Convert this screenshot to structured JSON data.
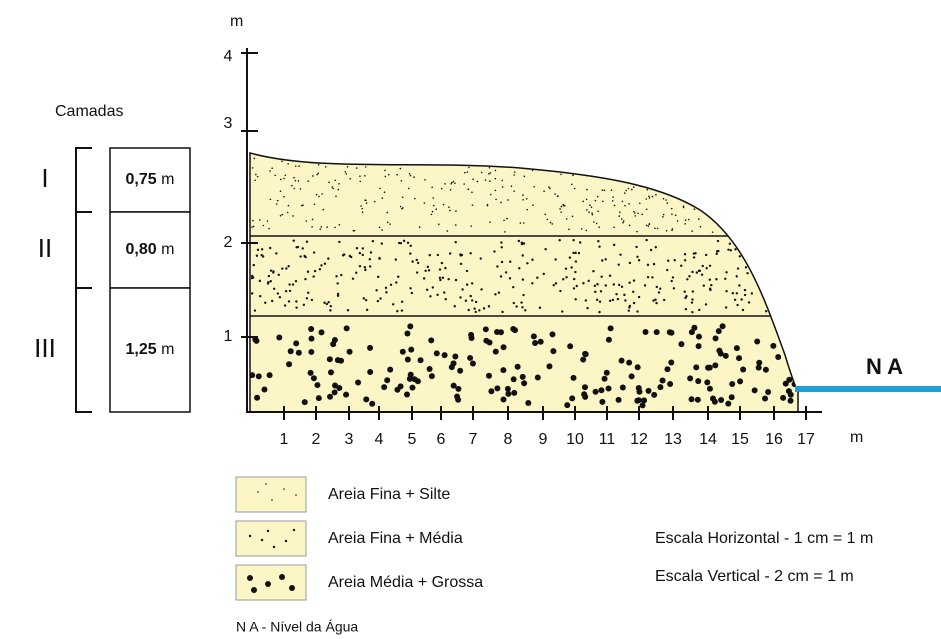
{
  "y_axis": {
    "unit": "m",
    "ticks": [
      "1",
      "2",
      "3",
      "4"
    ]
  },
  "x_axis": {
    "unit": "m",
    "ticks": [
      "1",
      "2",
      "3",
      "4",
      "5",
      "6",
      "7",
      "8",
      "9",
      "10",
      "11",
      "12",
      "13",
      "14",
      "15",
      "16",
      "17"
    ]
  },
  "camadas": {
    "title": "Camadas",
    "layers": [
      {
        "numeral": "I",
        "thickness": "0,75",
        "unit": "m"
      },
      {
        "numeral": "II",
        "thickness": "0,80",
        "unit": "m"
      },
      {
        "numeral": "III",
        "thickness": "1,25",
        "unit": "m"
      }
    ]
  },
  "water_level": "N A",
  "legend": [
    "Areia Fina + Silte",
    "Areia Fina + Média",
    "Areia Média + Grossa"
  ],
  "scale": [
    "Escala Horizontal - 1 cm = 1 m",
    "Escala Vertical - 2 cm = 1 m"
  ],
  "note": "N A - Nível da Água"
}
